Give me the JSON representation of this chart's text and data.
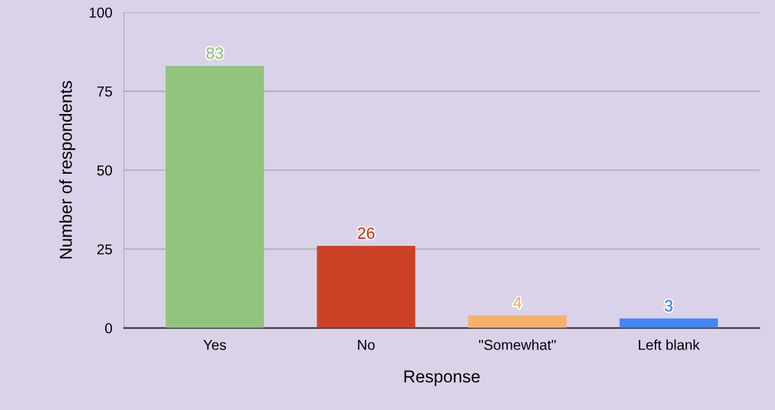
{
  "chart_data": {
    "type": "bar",
    "xlabel": "Response",
    "ylabel": "Number of respondents",
    "categories": [
      "Yes",
      "No",
      "\"Somewhat\"",
      "Left blank"
    ],
    "values": [
      83,
      26,
      4,
      3
    ],
    "colors": [
      "#93c47d",
      "#cc4125",
      "#f6b26b",
      "#4285f4"
    ],
    "ylim": [
      0,
      100
    ],
    "yticks": [
      0,
      25,
      50,
      75,
      100
    ],
    "grid": "y",
    "data_labels": true
  }
}
